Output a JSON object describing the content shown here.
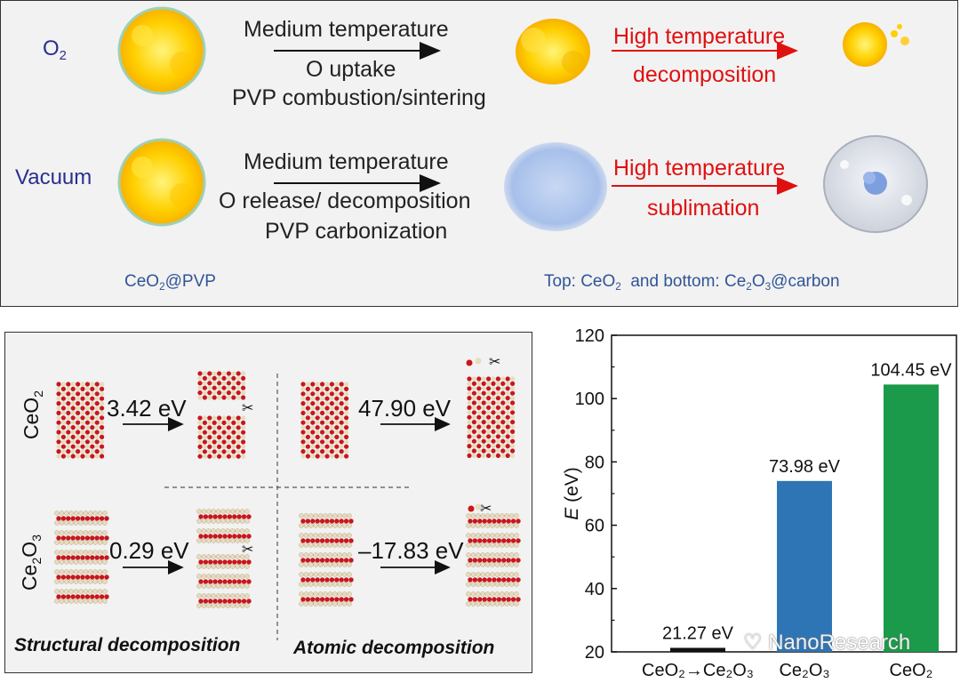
{
  "top_panel": {
    "row_o2": {
      "condition_label": "O",
      "condition_sub": "2",
      "step1_lines": [
        "Medium temperature",
        "O uptake",
        "PVP combustion/sintering"
      ],
      "step2_lines": [
        "High temperature",
        "decomposition"
      ]
    },
    "row_vacuum": {
      "condition_label": "Vacuum",
      "step1_lines": [
        "Medium temperature",
        "O release/ decomposition",
        "PVP carbonization"
      ],
      "step2_lines": [
        "High temperature",
        "sublimation"
      ]
    },
    "start_caption": {
      "pre": "CeO",
      "sub": "2",
      "post": "@PVP"
    },
    "end_caption": {
      "pre": "Top: CeO",
      "sub1": "2",
      "mid": "  and bottom: Ce",
      "sub2": "2",
      "mid2": "O",
      "sub3": "3",
      "post": "@carbon"
    }
  },
  "left_panel": {
    "row1_label": {
      "pre": "CeO",
      "sub": "2"
    },
    "row2_label": {
      "pre": "Ce",
      "sub1": "2",
      "mid": "O",
      "sub2": "3"
    },
    "structural_ceo2_energy": "3.42 eV",
    "atomic_ceo2_energy": "47.90 eV",
    "structural_ce2o3_energy": "0.29 eV",
    "atomic_ce2o3_energy": "–17.83 eV",
    "structural_caption": "Structural decomposition",
    "atomic_caption": "Atomic decomposition"
  },
  "chart_data": {
    "type": "bar",
    "categories": [
      "CeO₂→Ce₂O₃",
      "Ce₂O₃",
      "CeO₂"
    ],
    "values": [
      21.27,
      73.98,
      104.45
    ],
    "data_labels": [
      "21.27 eV",
      "73.98 eV",
      "104.45 eV"
    ],
    "colors": [
      "#111111",
      "#2e75b6",
      "#1a9a4a"
    ],
    "ylabel": "E (eV)",
    "ylabel_italic": "E",
    "ylabel_unit": " (eV)",
    "ylim": [
      20,
      120
    ],
    "yticks": [
      20,
      40,
      60,
      80,
      100,
      120
    ]
  },
  "watermark": "NanoResearch"
}
